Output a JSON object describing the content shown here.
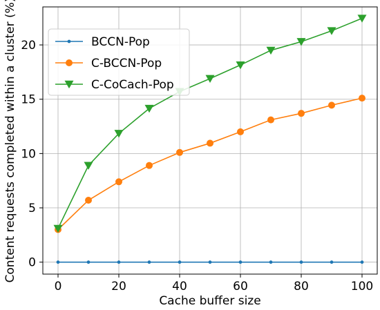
{
  "chart_data": {
    "type": "line",
    "xlabel": "Cache buffer size",
    "ylabel": "Content requests completed within a cluster (%)",
    "xlim": [
      -5,
      105
    ],
    "ylim": [
      -1.1,
      23.5
    ],
    "x_ticks": [
      0,
      20,
      40,
      60,
      80,
      100
    ],
    "y_ticks": [
      0,
      5,
      10,
      15,
      20
    ],
    "grid": true,
    "legend_position": "top-left",
    "x": [
      0,
      10,
      20,
      30,
      40,
      50,
      60,
      70,
      80,
      90,
      100
    ],
    "series": [
      {
        "name": "BCCN-Pop",
        "color": "#1f77b4",
        "marker": "dot",
        "values": [
          0,
          0,
          0,
          0,
          0,
          0,
          0,
          0,
          0,
          0,
          0
        ]
      },
      {
        "name": "C-BCCN-Pop",
        "color": "#ff7f0e",
        "marker": "circle",
        "values": [
          3.0,
          5.7,
          7.4,
          8.9,
          10.1,
          10.95,
          12.0,
          13.1,
          13.7,
          14.45,
          15.1
        ]
      },
      {
        "name": "C-CoCach-Pop",
        "color": "#2ca02c",
        "marker": "triangle-down",
        "values": [
          3.1,
          8.9,
          11.85,
          14.15,
          15.7,
          16.9,
          18.15,
          19.5,
          20.3,
          21.3,
          22.45
        ]
      }
    ]
  }
}
